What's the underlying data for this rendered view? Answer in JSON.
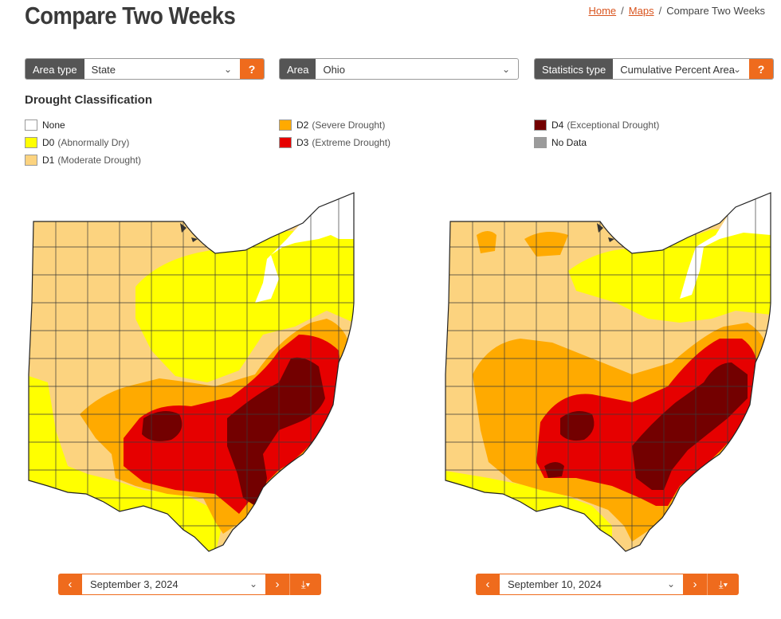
{
  "header": {
    "title": "Compare Two Weeks"
  },
  "breadcrumb": {
    "home": "Home",
    "maps": "Maps",
    "current": "Compare Two Weeks",
    "separator": "/"
  },
  "controls": {
    "area_type": {
      "label": "Area type",
      "value": "State",
      "help": "?"
    },
    "area": {
      "label": "Area",
      "value": "Ohio"
    },
    "statistics_type": {
      "label": "Statistics type",
      "value": "Cumulative Percent Area",
      "help": "?"
    }
  },
  "legend": {
    "title": "Drought Classification",
    "items": [
      {
        "code": "None",
        "desc": "",
        "color": "#ffffff"
      },
      {
        "code": "D0",
        "desc": "(Abnormally Dry)",
        "color": "#ffff00"
      },
      {
        "code": "D1",
        "desc": "(Moderate Drought)",
        "color": "#fcd37f"
      },
      {
        "code": "D2",
        "desc": "(Severe Drought)",
        "color": "#ffaa00"
      },
      {
        "code": "D3",
        "desc": "(Extreme Drought)",
        "color": "#e60000"
      },
      {
        "code": "D4",
        "desc": "(Exceptional Drought)",
        "color": "#730000"
      },
      {
        "code": "No Data",
        "desc": "",
        "color": "#9b9b9b"
      }
    ]
  },
  "maps": [
    {
      "date": "September 3, 2024"
    },
    {
      "date": "September 10, 2024"
    }
  ],
  "icons": {
    "chevron_down": "⌄",
    "prev": "‹",
    "next": "›",
    "download": "⤓▾"
  }
}
